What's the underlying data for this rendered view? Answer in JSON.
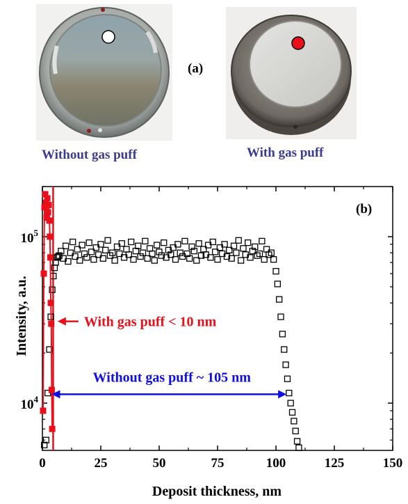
{
  "panel_a": {
    "label": "(a)",
    "left_caption": "Without gas puff",
    "right_caption": "With gas puff",
    "left_marker_color": "#ffffff",
    "right_marker_color": "#e8101a"
  },
  "chart_data": {
    "type": "scatter",
    "panel_label": "(b)",
    "xlabel": "Deposit thickness, nm",
    "ylabel": "Intensity, a.u.",
    "xlim": [
      0,
      150
    ],
    "ylim": [
      5200,
      200000
    ],
    "yscale": "log",
    "x_ticks": [
      0,
      25,
      50,
      75,
      100,
      125,
      150
    ],
    "y_ticks": [
      {
        "value": 10000,
        "base": "10",
        "exp": "4"
      },
      {
        "value": 100000,
        "base": "10",
        "exp": "5"
      }
    ],
    "series": [
      {
        "name": "",
        "marker": "open-square",
        "color": "#000000",
        "x": [
          0.8,
          1.6,
          2.3,
          3.0,
          3.6,
          4.2,
          4.7,
          5.2,
          5.7,
          6.2,
          6.7,
          7.2,
          8,
          9,
          10,
          11,
          12,
          13,
          14,
          15,
          16,
          17,
          18,
          19,
          20,
          21,
          22,
          23,
          24,
          25,
          26,
          27,
          28,
          29,
          30,
          31,
          32,
          33,
          34,
          35,
          36,
          37,
          38,
          39,
          40,
          41,
          42,
          43,
          44,
          45,
          46,
          47,
          48,
          49,
          50,
          51,
          52,
          53,
          54,
          55,
          56,
          57,
          58,
          59,
          60,
          61,
          62,
          63,
          64,
          65,
          66,
          67,
          68,
          69,
          70,
          71,
          72,
          73,
          74,
          75,
          76,
          77,
          78,
          79,
          80,
          81,
          82,
          83,
          84,
          85,
          86,
          87,
          88,
          89,
          90,
          91,
          92,
          93,
          94,
          95,
          96,
          97,
          98,
          99,
          100,
          100.7,
          101.4,
          102.1,
          102.8,
          103.5,
          104.2,
          104.9,
          105.6,
          106.3,
          107.0,
          107.7,
          108.4,
          109.1,
          109.8
        ],
        "y": [
          5600,
          6000,
          11500,
          21000,
          33000,
          48000,
          58000,
          65000,
          70000,
          75000,
          76000,
          77000,
          82000,
          74000,
          88000,
          71000,
          80000,
          93000,
          76000,
          84000,
          72000,
          89000,
          79000,
          75000,
          92000,
          81000,
          73000,
          86000,
          78000,
          90000,
          74000,
          83000,
          95000,
          77000,
          80000,
          72000,
          87000,
          79000,
          91000,
          75000,
          84000,
          78000,
          93000,
          73000,
          82000,
          88000,
          76000,
          80000,
          94000,
          74000,
          85000,
          79000,
          72000,
          89000,
          81000,
          77000,
          92000,
          75000,
          83000,
          78000,
          86000,
          73000,
          90000,
          80000,
          76000,
          94000,
          79000,
          74000,
          87000,
          82000,
          72000,
          91000,
          77000,
          84000,
          78000,
          89000,
          75000,
          93000,
          81000,
          73000,
          86000,
          79000,
          90000,
          76000,
          83000,
          74000,
          88000,
          80000,
          95000,
          72000,
          85000,
          78000,
          92000,
          75000,
          82000,
          87000,
          77000,
          79000,
          94000,
          73000,
          84000,
          78000,
          80000,
          73000,
          62000,
          52000,
          42000,
          33000,
          26000,
          21000,
          17000,
          14000,
          11500,
          10000,
          8800,
          7800,
          6800,
          5900,
          5400
        ]
      },
      {
        "name": "",
        "marker": "filled-square",
        "color": "#e8101a",
        "x": [
          0.3,
          0.6,
          0.9,
          1.2,
          1.5,
          1.8,
          2.1,
          2.4,
          2.7,
          3.0,
          3.2,
          3.4,
          3.6,
          3.8,
          4.0,
          4.2
        ],
        "y": [
          9000,
          60000,
          150000,
          180000,
          160000,
          130000,
          170000,
          140000,
          155000,
          125000,
          100000,
          75000,
          40000,
          30000,
          12000,
          7000
        ]
      }
    ],
    "annotations": [
      {
        "text": "With gas puff < 10 nm",
        "color": "#e8101a",
        "arrow_to_x": 6.5,
        "arrow_at_y": 31000
      },
      {
        "text": "Without gas puff ~ 105 nm",
        "color": "#1010e0",
        "arrow_from_x": 4,
        "arrow_to_x": 104.5,
        "arrow_at_y": 11300
      }
    ],
    "vertical_lines": [
      {
        "x": 4.6,
        "color": "#e8101a"
      }
    ]
  }
}
